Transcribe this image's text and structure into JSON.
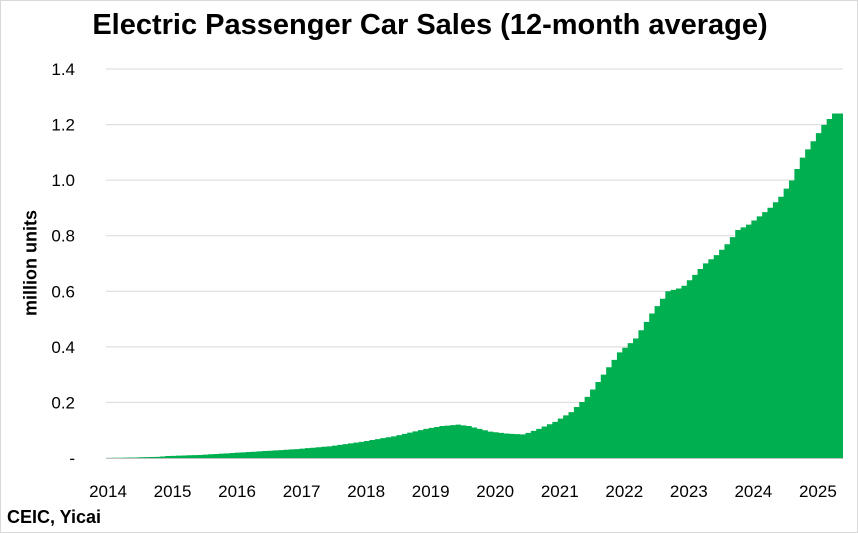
{
  "chart_data": {
    "type": "area",
    "title": "Electric Passenger Car Sales (12-month average)",
    "ylabel": "million units",
    "xlabel": "",
    "source": "CEIC, Yicai",
    "ylim": [
      0,
      1.4
    ],
    "xlim": [
      2014,
      2025.42
    ],
    "y_ticks": [
      "-",
      "0.2",
      "0.4",
      "0.6",
      "0.8",
      "1.0",
      "1.2",
      "1.4"
    ],
    "x_ticks": [
      "2014",
      "2015",
      "2016",
      "2017",
      "2018",
      "2019",
      "2020",
      "2021",
      "2022",
      "2023",
      "2024",
      "2025"
    ],
    "grid": "horizontal",
    "legend": "none",
    "color": "#00b050",
    "series": [
      {
        "x": [
          2014.0,
          2014.5,
          2014.83,
          2015.0,
          2015.5,
          2016.0,
          2016.5,
          2017.0,
          2017.5,
          2018.0,
          2018.5,
          2019.0,
          2019.25,
          2019.5,
          2019.67,
          2019.83,
          2020.0,
          2020.25,
          2020.5,
          2020.58,
          2020.75,
          2021.0,
          2021.25,
          2021.5,
          2021.75,
          2022.0,
          2022.25,
          2022.5,
          2022.75,
          2022.92,
          2023.0,
          2023.17,
          2023.33,
          2023.5,
          2023.67,
          2023.83,
          2024.0,
          2024.17,
          2024.33,
          2024.5,
          2024.67,
          2024.83,
          2025.0,
          2025.17,
          2025.33,
          2025.42
        ],
        "values": [
          0.0,
          0.002,
          0.004,
          0.007,
          0.011,
          0.018,
          0.025,
          0.032,
          0.042,
          0.058,
          0.078,
          0.105,
          0.115,
          0.12,
          0.115,
          0.105,
          0.095,
          0.088,
          0.085,
          0.09,
          0.105,
          0.13,
          0.165,
          0.22,
          0.3,
          0.38,
          0.43,
          0.52,
          0.6,
          0.61,
          0.62,
          0.66,
          0.7,
          0.73,
          0.77,
          0.82,
          0.84,
          0.87,
          0.9,
          0.94,
          1.0,
          1.08,
          1.14,
          1.2,
          1.24,
          1.24
        ]
      }
    ]
  }
}
